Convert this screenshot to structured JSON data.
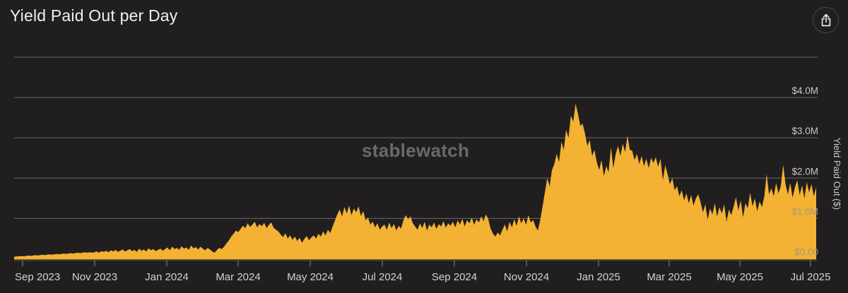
{
  "header": {
    "title": "Yield Paid Out per Day"
  },
  "watermark": "stablewatch",
  "chart_data": {
    "type": "area",
    "title": "Yield Paid Out per Day",
    "xlabel": "",
    "ylabel": "Yield Paid Out ($)",
    "x_tick_labels": [
      "Sep 2023",
      "Nov 2023",
      "Jan 2024",
      "Mar 2024",
      "May 2024",
      "Jul 2024",
      "Sep 2024",
      "Nov 2024",
      "Jan 2025",
      "Mar 2025",
      "May 2025",
      "Jul 2025"
    ],
    "y_tick_labels": [
      "$0.00",
      "$1.0M",
      "$2.0M",
      "$3.0M",
      "$4.0M"
    ],
    "ylim_usd": [
      0,
      5000000
    ],
    "grid": "horizontal",
    "legend": "none",
    "x_domain": [
      "late Aug 2023",
      "early Jul 2025"
    ],
    "unit": "USD (millions) paid out per day",
    "notable_points": {
      "peak_value_m": 3.85,
      "peak_date_approx": "mid Dec 2024",
      "secondary_peak_m": 3.05,
      "secondary_peak_date_approx": "mid Jan 2025"
    },
    "values_m": [
      0.05,
      0.06,
      0.06,
      0.07,
      0.06,
      0.07,
      0.08,
      0.07,
      0.08,
      0.09,
      0.08,
      0.09,
      0.1,
      0.09,
      0.1,
      0.11,
      0.1,
      0.11,
      0.12,
      0.11,
      0.12,
      0.13,
      0.12,
      0.13,
      0.14,
      0.13,
      0.14,
      0.15,
      0.14,
      0.15,
      0.16,
      0.15,
      0.16,
      0.15,
      0.16,
      0.18,
      0.15,
      0.19,
      0.17,
      0.2,
      0.16,
      0.21,
      0.18,
      0.22,
      0.17,
      0.2,
      0.23,
      0.18,
      0.21,
      0.24,
      0.19,
      0.22,
      0.17,
      0.25,
      0.2,
      0.23,
      0.18,
      0.26,
      0.21,
      0.24,
      0.19,
      0.22,
      0.25,
      0.2,
      0.24,
      0.28,
      0.21,
      0.3,
      0.24,
      0.27,
      0.22,
      0.31,
      0.25,
      0.28,
      0.22,
      0.33,
      0.26,
      0.29,
      0.23,
      0.3,
      0.25,
      0.21,
      0.27,
      0.23,
      0.18,
      0.15,
      0.22,
      0.27,
      0.24,
      0.3,
      0.38,
      0.45,
      0.55,
      0.62,
      0.7,
      0.66,
      0.74,
      0.82,
      0.76,
      0.88,
      0.79,
      0.85,
      0.92,
      0.78,
      0.86,
      0.81,
      0.89,
      0.76,
      0.84,
      0.9,
      0.77,
      0.72,
      0.68,
      0.6,
      0.54,
      0.63,
      0.5,
      0.58,
      0.47,
      0.55,
      0.44,
      0.52,
      0.4,
      0.49,
      0.56,
      0.46,
      0.53,
      0.58,
      0.5,
      0.62,
      0.55,
      0.68,
      0.58,
      0.72,
      0.64,
      0.8,
      0.95,
      1.1,
      1.22,
      1.05,
      1.28,
      1.12,
      1.32,
      1.08,
      1.25,
      1.15,
      1.3,
      1.06,
      1.18,
      0.95,
      1.02,
      0.85,
      0.92,
      0.78,
      0.88,
      0.72,
      0.8,
      0.85,
      0.72,
      0.9,
      0.76,
      0.86,
      0.7,
      0.82,
      0.75,
      0.95,
      1.08,
      0.98,
      1.05,
      0.88,
      0.8,
      0.72,
      0.88,
      0.76,
      0.92,
      0.7,
      0.85,
      0.78,
      0.9,
      0.74,
      0.86,
      0.8,
      0.93,
      0.77,
      0.88,
      0.82,
      0.92,
      0.78,
      0.95,
      0.85,
      0.99,
      0.8,
      0.96,
      0.88,
      1.02,
      0.84,
      0.98,
      0.9,
      1.05,
      0.93,
      1.1,
      0.98,
      0.75,
      0.62,
      0.55,
      0.65,
      0.58,
      0.72,
      0.85,
      0.68,
      0.92,
      0.78,
      0.98,
      0.82,
      1.05,
      0.88,
      1.0,
      0.84,
      1.08,
      0.9,
      0.96,
      0.8,
      0.7,
      0.95,
      1.3,
      1.65,
      2.0,
      1.8,
      2.2,
      2.35,
      2.6,
      2.4,
      2.9,
      2.7,
      3.2,
      3.0,
      3.55,
      3.4,
      3.85,
      3.6,
      3.3,
      3.35,
      3.1,
      2.8,
      2.95,
      2.55,
      2.7,
      2.4,
      2.2,
      2.45,
      2.05,
      2.3,
      2.15,
      2.77,
      2.25,
      2.6,
      2.8,
      2.55,
      2.85,
      2.65,
      3.05,
      2.7,
      2.68,
      2.45,
      2.6,
      2.35,
      2.55,
      2.3,
      2.48,
      2.25,
      2.5,
      2.38,
      2.52,
      2.28,
      2.48,
      1.95,
      2.32,
      2.1,
      1.85,
      2.0,
      1.7,
      1.8,
      1.55,
      1.7,
      1.45,
      1.62,
      1.38,
      1.58,
      1.32,
      1.5,
      1.6,
      1.4,
      1.15,
      1.35,
      0.97,
      1.25,
      1.1,
      1.38,
      1.05,
      1.28,
      1.12,
      1.35,
      0.92,
      1.22,
      1.08,
      1.3,
      1.53,
      1.2,
      1.45,
      1.03,
      1.38,
      1.25,
      1.64,
      1.3,
      1.5,
      1.18,
      1.42,
      1.28,
      1.55,
      2.1,
      1.6,
      1.75,
      1.55,
      1.88,
      1.62,
      1.8,
      2.33,
      1.85,
      1.6,
      1.88,
      1.52,
      1.78,
      1.95,
      1.58,
      1.82,
      1.5,
      1.9,
      1.65,
      1.85,
      1.55,
      1.78
    ],
    "colors": {
      "area": "#f3b233",
      "background": "#201e1f",
      "gridline": "#757575",
      "tick_label": "#d4d2cf",
      "axis_title": "#ccc9c4",
      "watermark": "#6a6a6a",
      "title": "#f2f0ed"
    }
  }
}
